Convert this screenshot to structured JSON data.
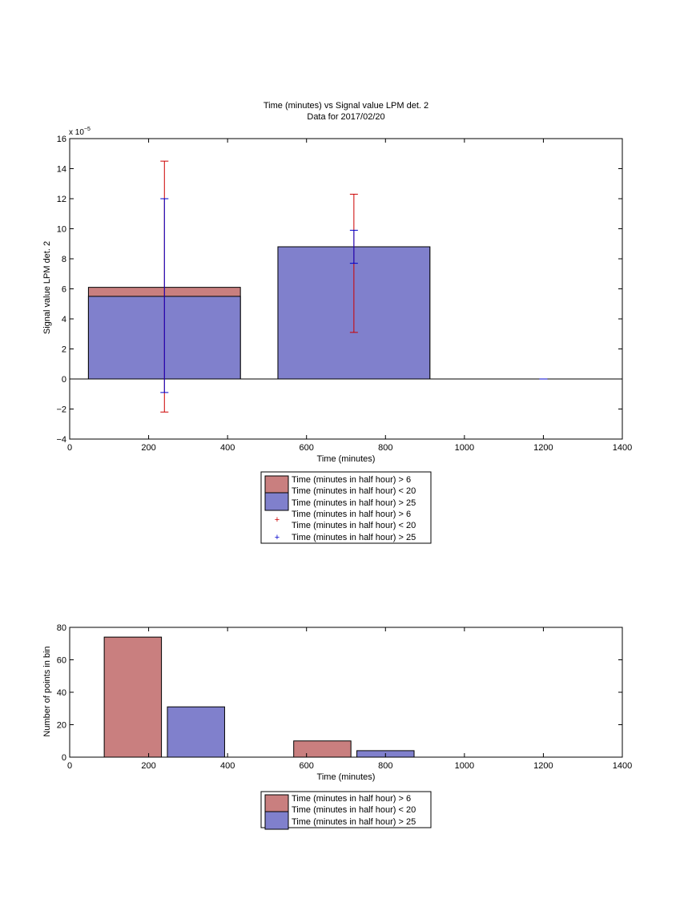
{
  "chart_data": [
    {
      "type": "bar",
      "title": "Time (minutes) vs Signal value LPM det. 2",
      "subtitle": "Data for 2017/02/20",
      "xlabel": "Time (minutes)",
      "ylabel": "Signal value LPM det. 2",
      "y_exponent_base": "x 10",
      "y_exponent": "−5",
      "xlim": [
        0,
        1400
      ],
      "ylim": [
        -4,
        16
      ],
      "xticks": [
        0,
        200,
        400,
        600,
        800,
        1000,
        1200,
        1400
      ],
      "yticks": [
        -4,
        -2,
        0,
        2,
        4,
        6,
        8,
        10,
        12,
        14,
        16
      ],
      "bars": [
        {
          "x": 240,
          "width": 385,
          "values": [
            6.1,
            5.5
          ]
        },
        {
          "x": 720,
          "width": 385,
          "values": [
            8.8,
            8.8
          ]
        }
      ],
      "series": [
        {
          "name": "Time (minutes in half hour) > 6 Time (minutes in half hour) < 20",
          "color": "#c97f7f"
        },
        {
          "name": "Time (minutes in half hour) > 25",
          "color": "#8080cc"
        }
      ],
      "errorbars": [
        {
          "name": "Time (minutes in half hour) > 6 Time (minutes in half hour) < 20",
          "color": "#cc0000",
          "points": [
            {
              "x": 240,
              "low": -2.2,
              "high": 14.5
            },
            {
              "x": 720,
              "low": 3.1,
              "high": 12.3
            }
          ]
        },
        {
          "name": "Time (minutes in half hour) > 25",
          "color": "#0000cc",
          "points": [
            {
              "x": 240,
              "low": -0.9,
              "high": 12.0
            },
            {
              "x": 720,
              "low": 7.7,
              "high": 9.9
            },
            {
              "x": 1200,
              "low": 0,
              "high": 0
            }
          ]
        }
      ],
      "legend": {
        "placement": "below",
        "lines": [
          "Time (minutes in half hour) > 6",
          "Time (minutes in half hour) < 20",
          "Time (minutes in half hour) > 25",
          "Time (minutes in half hour) > 6",
          "Time (minutes in half hour) < 20",
          "Time (minutes in half hour) > 25"
        ]
      },
      "grid": false
    },
    {
      "type": "bar",
      "title": "",
      "xlabel": "Time (minutes)",
      "ylabel": "Number of points in bin",
      "xlim": [
        0,
        1400
      ],
      "ylim": [
        0,
        80
      ],
      "xticks": [
        0,
        200,
        400,
        600,
        800,
        1000,
        1200,
        1400
      ],
      "yticks": [
        0,
        20,
        40,
        60,
        80
      ],
      "series": [
        {
          "name": "Time (minutes in half hour) > 6 Time (minutes in half hour) < 20",
          "color": "#c97f7f",
          "points": [
            {
              "x": 160,
              "value": 74
            },
            {
              "x": 640,
              "value": 10
            }
          ]
        },
        {
          "name": "Time (minutes in half hour) > 25",
          "color": "#8080cc",
          "points": [
            {
              "x": 320,
              "value": 31
            },
            {
              "x": 800,
              "value": 4
            }
          ]
        }
      ],
      "bar_width": 145,
      "legend": {
        "placement": "below",
        "lines": [
          "Time (minutes in half hour) > 6",
          "Time (minutes in half hour) < 20",
          "Time (minutes in half hour) > 25"
        ]
      },
      "grid": false
    }
  ]
}
